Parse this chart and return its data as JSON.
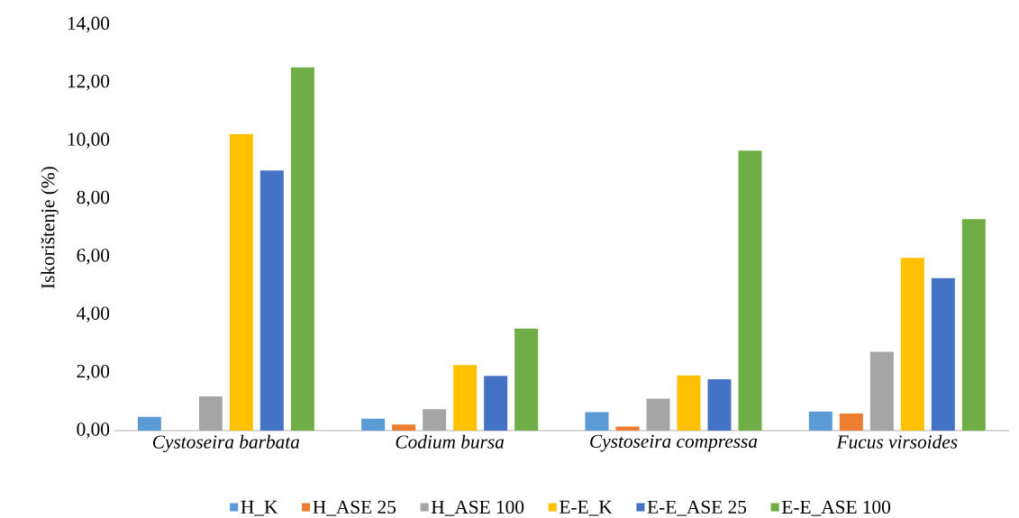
{
  "chart_data": {
    "type": "bar",
    "ylabel": "Iskorištenje (%)",
    "categories": [
      "Cystoseira barbata",
      "Codium bursa",
      "Cystoseira compressa",
      "Fucus virsoides"
    ],
    "series": [
      {
        "name": "H_K",
        "color": "#5b9bd5",
        "values": [
          0.47,
          0.41,
          0.64,
          0.66
        ]
      },
      {
        "name": "H_ASE 25",
        "color": "#ed7d31",
        "values": [
          null,
          0.21,
          0.14,
          0.59
        ]
      },
      {
        "name": "H_ASE 100",
        "color": "#a5a5a5",
        "values": [
          1.18,
          0.74,
          1.1,
          2.72
        ]
      },
      {
        "name": "E-E_K",
        "color": "#ffc000",
        "values": [
          10.23,
          2.26,
          1.9,
          5.96
        ]
      },
      {
        "name": "E-E_ASE 25",
        "color": "#4472c4",
        "values": [
          8.97,
          1.89,
          1.77,
          5.26
        ]
      },
      {
        "name": "E-E_ASE 100",
        "color": "#70ad47",
        "values": [
          12.53,
          3.52,
          9.65,
          7.29
        ]
      }
    ],
    "ylim": [
      0,
      14
    ],
    "yticks": [
      {
        "value": 0,
        "label": "0,00"
      },
      {
        "value": 2,
        "label": "2,00"
      },
      {
        "value": 4,
        "label": "4,00"
      },
      {
        "value": 6,
        "label": "6,00"
      },
      {
        "value": 8,
        "label": "8,00"
      },
      {
        "value": 10,
        "label": "10,00"
      },
      {
        "value": 12,
        "label": "12,00"
      },
      {
        "value": 14,
        "label": "14,00"
      }
    ],
    "legend": "bottom",
    "grid": false
  }
}
